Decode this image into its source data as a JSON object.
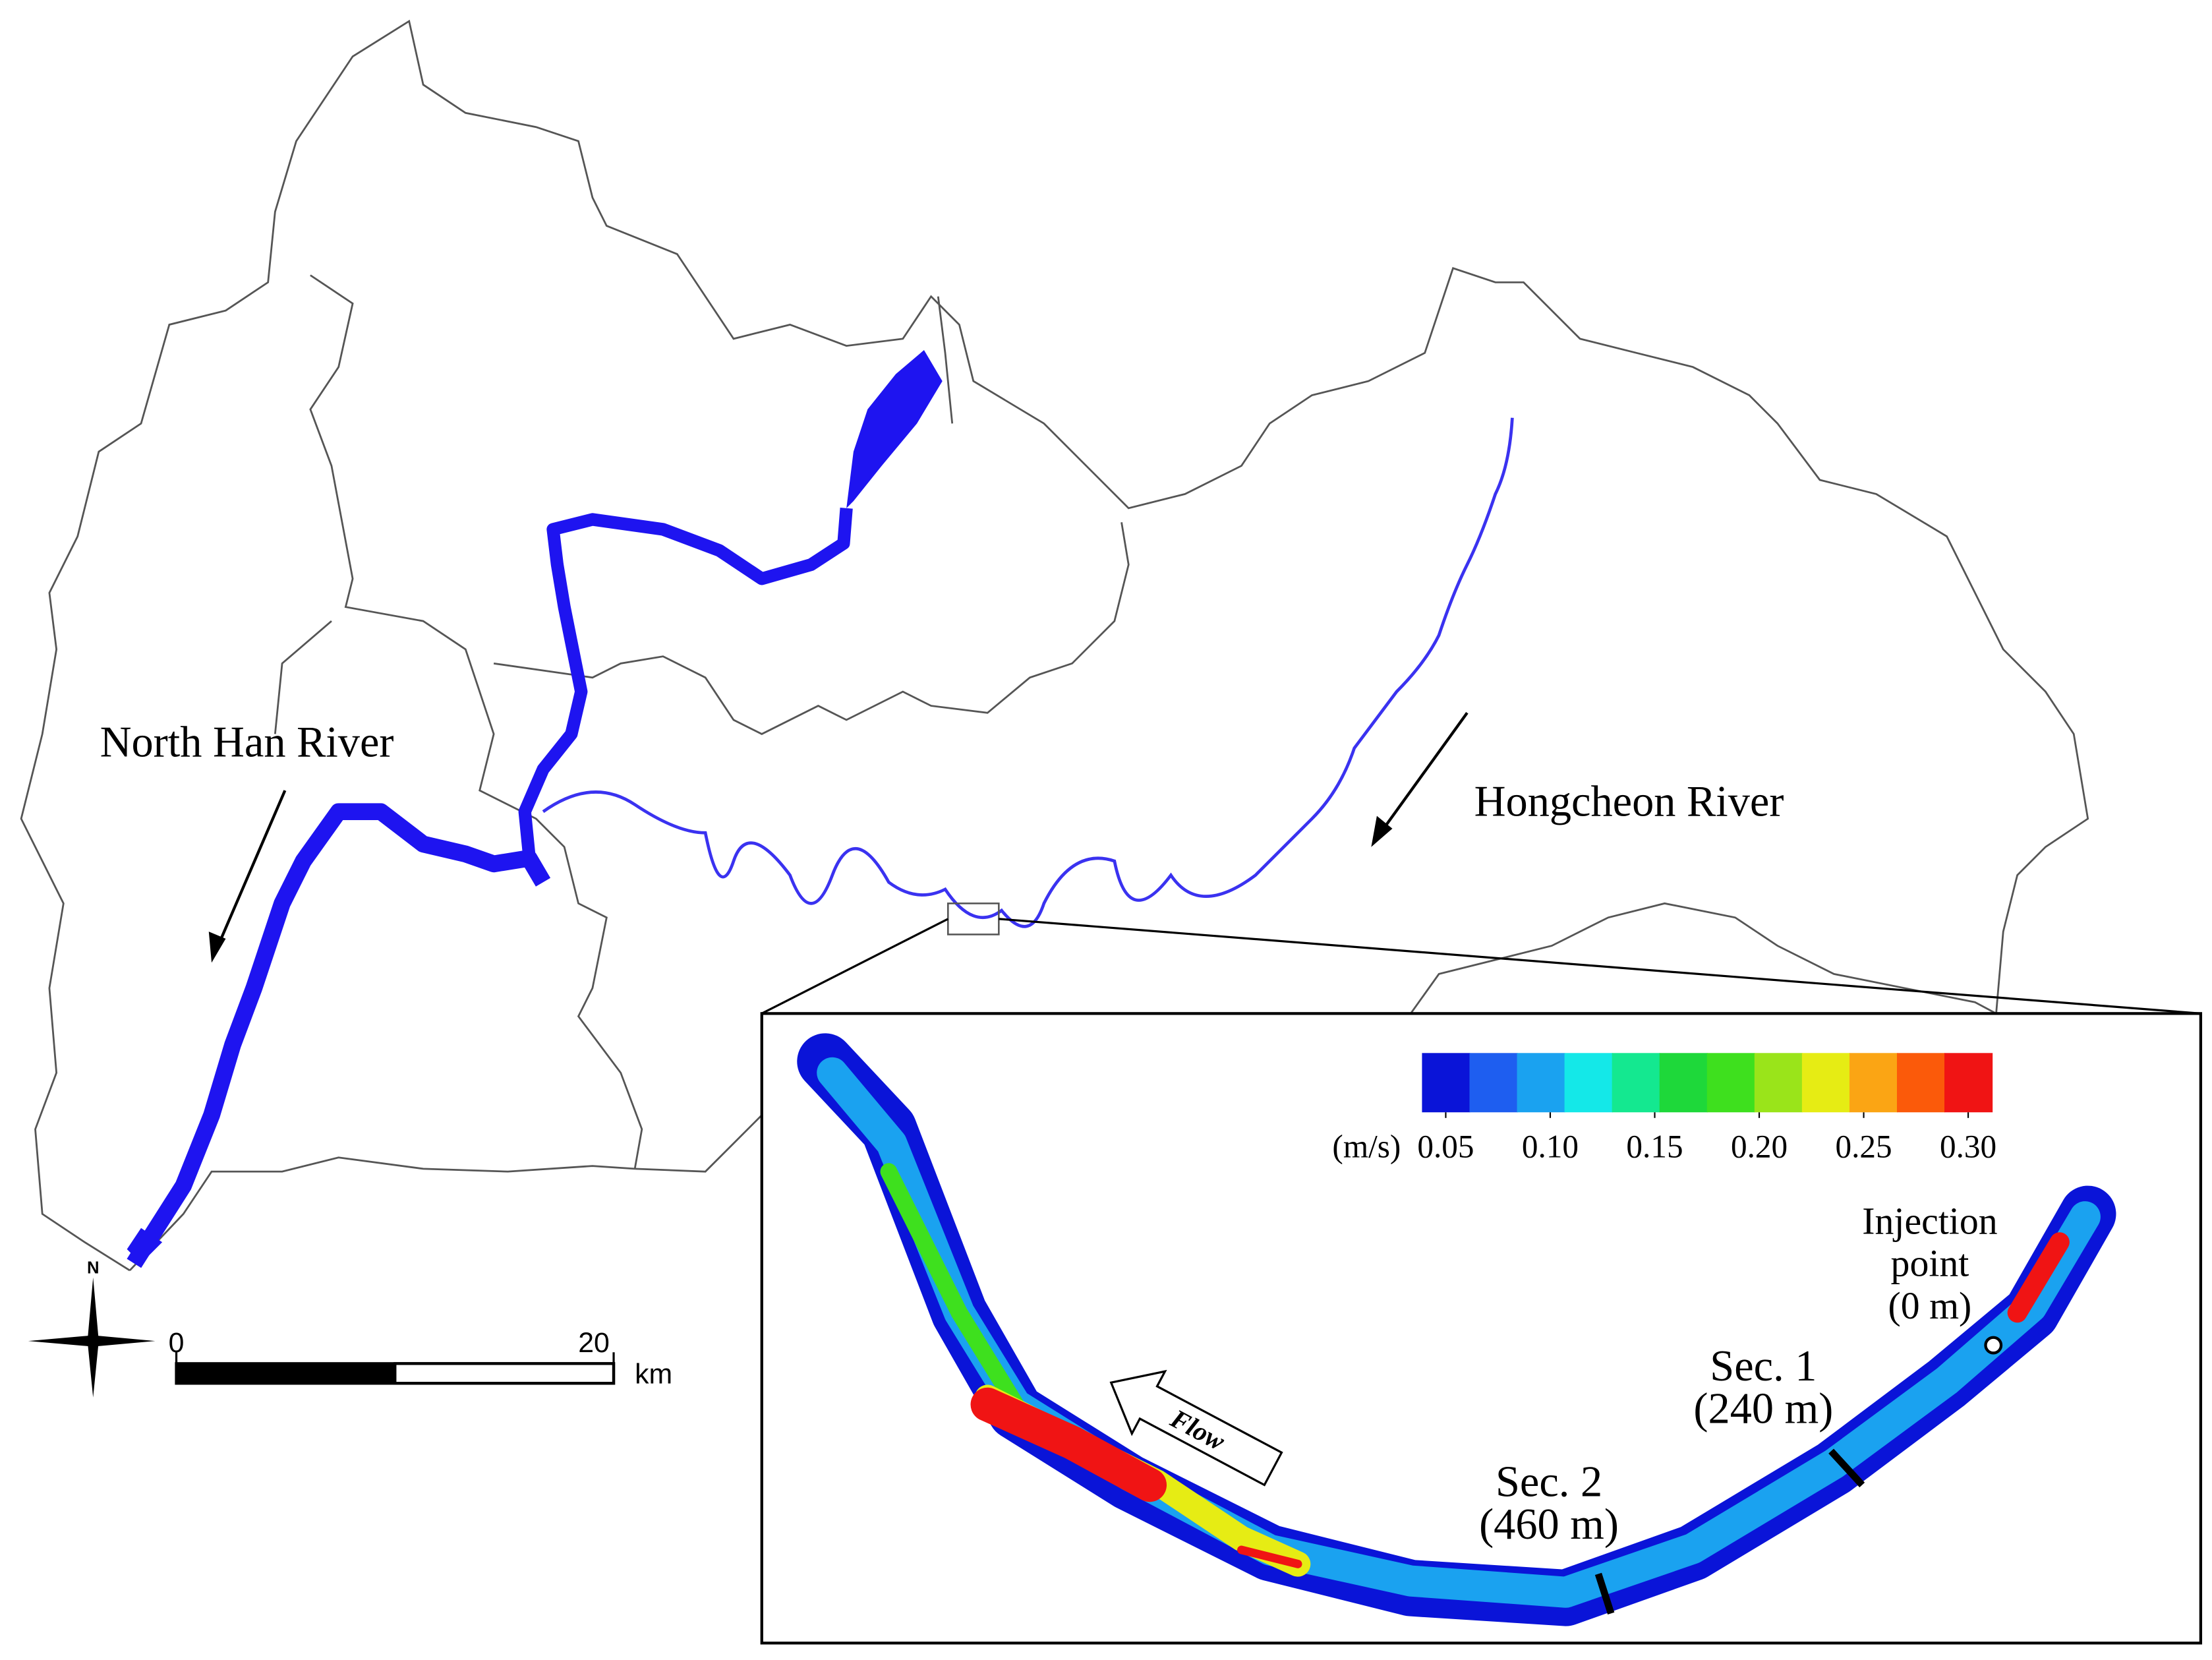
{
  "map": {
    "labels": {
      "north_han": "North Han River",
      "hongcheon": "Hongcheon River",
      "north": "N"
    },
    "scale_bar": {
      "ticks": [
        0,
        20
      ],
      "unit": "km"
    },
    "inset": {
      "legend": {
        "unit": "(m/s)",
        "colors": [
          "#0a14d8",
          "#1e5ef0",
          "#1aa2f0",
          "#14e8e8",
          "#14e890",
          "#1ed83a",
          "#3ee01e",
          "#9ae41a",
          "#e6ec14",
          "#fba514",
          "#fb5a0a",
          "#f01414"
        ],
        "ticks": [
          0.05,
          {
            "value": 0.1,
            "label": "0.10"
          },
          0.15,
          {
            "value": 0.2,
            "label": "0.20"
          },
          0.25,
          {
            "value": 0.3,
            "label": "0.30"
          }
        ]
      },
      "flow": "Flow",
      "injection": [
        "Injection",
        "point",
        "(0 m)"
      ],
      "sec1": [
        "Sec. 1",
        "(240 m)"
      ],
      "sec2": [
        "Sec. 2",
        "(460 m)"
      ]
    }
  }
}
